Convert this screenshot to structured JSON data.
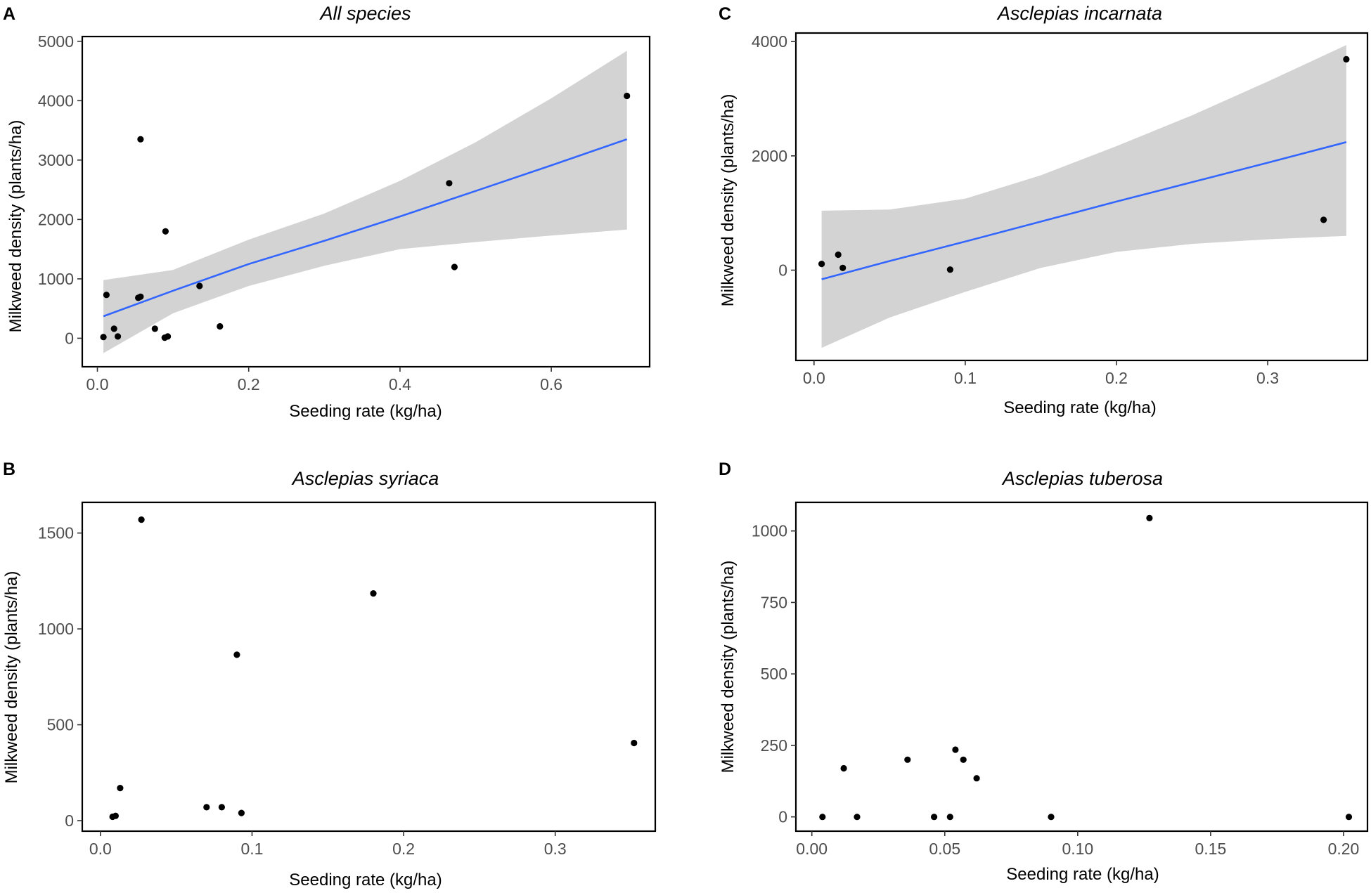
{
  "chart_data": [
    {
      "panel": "A",
      "type": "scatter",
      "title": "All species",
      "xlabel": "Seeding rate (kg/ha)",
      "ylabel": "Milkweed density (plants/ha)",
      "xlim": [
        -0.02,
        0.73
      ],
      "ylim": [
        -480,
        5080
      ],
      "xticks": [
        0.0,
        0.2,
        0.4,
        0.6
      ],
      "xtick_labels": [
        "0.0",
        "0.2",
        "0.4",
        "0.6"
      ],
      "yticks": [
        0,
        1000,
        2000,
        3000,
        4000,
        5000
      ],
      "ytick_labels": [
        "0",
        "1000",
        "2000",
        "3000",
        "4000",
        "5000"
      ],
      "grid": false,
      "points": [
        {
          "x": 0.008,
          "y": 20
        },
        {
          "x": 0.012,
          "y": 730
        },
        {
          "x": 0.022,
          "y": 160
        },
        {
          "x": 0.027,
          "y": 30
        },
        {
          "x": 0.054,
          "y": 680
        },
        {
          "x": 0.057,
          "y": 700
        },
        {
          "x": 0.057,
          "y": 3350
        },
        {
          "x": 0.076,
          "y": 160
        },
        {
          "x": 0.089,
          "y": 10
        },
        {
          "x": 0.09,
          "y": 1800
        },
        {
          "x": 0.093,
          "y": 30
        },
        {
          "x": 0.135,
          "y": 880
        },
        {
          "x": 0.162,
          "y": 200
        },
        {
          "x": 0.465,
          "y": 2610
        },
        {
          "x": 0.472,
          "y": 1200
        },
        {
          "x": 0.7,
          "y": 4080
        }
      ],
      "fit": {
        "color": "#3366ff",
        "band_color": "#d3d3d3",
        "x": [
          0.008,
          0.1,
          0.2,
          0.3,
          0.4,
          0.5,
          0.6,
          0.7
        ],
        "y": [
          370,
          800,
          1250,
          1640,
          2050,
          2480,
          2910,
          3350
        ],
        "lower": [
          -250,
          420,
          880,
          1220,
          1500,
          1620,
          1730,
          1830
        ],
        "upper": [
          980,
          1150,
          1660,
          2100,
          2650,
          3300,
          4040,
          4840
        ]
      }
    },
    {
      "panel": "B",
      "type": "scatter",
      "title": "Asclepias syriaca",
      "xlabel": "Seeding rate (kg/ha)",
      "ylabel": "Milkweed density (plants/ha)",
      "xlim": [
        -0.012,
        0.366
      ],
      "ylim": [
        -55,
        1660
      ],
      "xticks": [
        0.0,
        0.1,
        0.2,
        0.3
      ],
      "xtick_labels": [
        "0.0",
        "0.1",
        "0.2",
        "0.3"
      ],
      "yticks": [
        0,
        500,
        1000,
        1500
      ],
      "ytick_labels": [
        "0",
        "500",
        "1000",
        "1500"
      ],
      "grid": false,
      "points": [
        {
          "x": 0.008,
          "y": 20
        },
        {
          "x": 0.01,
          "y": 25
        },
        {
          "x": 0.013,
          "y": 170
        },
        {
          "x": 0.027,
          "y": 1570
        },
        {
          "x": 0.07,
          "y": 70
        },
        {
          "x": 0.08,
          "y": 70
        },
        {
          "x": 0.09,
          "y": 865
        },
        {
          "x": 0.093,
          "y": 40
        },
        {
          "x": 0.18,
          "y": 1185
        },
        {
          "x": 0.352,
          "y": 405
        }
      ]
    },
    {
      "panel": "C",
      "type": "scatter",
      "title": "Asclepias incarnata",
      "xlabel": "Seeding rate (kg/ha)",
      "ylabel": "Milkweed density (plants/ha)",
      "xlim": [
        -0.012,
        0.366
      ],
      "ylim": [
        -1580,
        4150
      ],
      "xticks": [
        0.0,
        0.1,
        0.2,
        0.3
      ],
      "xtick_labels": [
        "0.0",
        "0.1",
        "0.2",
        "0.3"
      ],
      "yticks": [
        0,
        2000,
        4000
      ],
      "ytick_labels": [
        "0",
        "2000",
        "4000"
      ],
      "grid": false,
      "points": [
        {
          "x": 0.005,
          "y": 110
        },
        {
          "x": 0.016,
          "y": 270
        },
        {
          "x": 0.019,
          "y": 40
        },
        {
          "x": 0.09,
          "y": 10
        },
        {
          "x": 0.337,
          "y": 880
        },
        {
          "x": 0.352,
          "y": 3690
        }
      ],
      "fit": {
        "color": "#3366ff",
        "band_color": "#d3d3d3",
        "x": [
          0.005,
          0.05,
          0.1,
          0.15,
          0.2,
          0.25,
          0.3,
          0.352
        ],
        "y": [
          -160,
          160,
          500,
          850,
          1200,
          1540,
          1880,
          2240
        ],
        "lower": [
          -1360,
          -830,
          -380,
          40,
          320,
          460,
          540,
          600
        ],
        "upper": [
          1040,
          1060,
          1250,
          1660,
          2170,
          2710,
          3300,
          3940
        ]
      }
    },
    {
      "panel": "D",
      "type": "scatter",
      "title": "Asclepias tuberosa",
      "xlabel": "Seeding rate (kg/ha)",
      "ylabel": "Milkweed density (plants/ha)",
      "xlim": [
        -0.006,
        0.209
      ],
      "ylim": [
        -50,
        1100
      ],
      "xticks": [
        0.0,
        0.05,
        0.1,
        0.15,
        0.2
      ],
      "xtick_labels": [
        "0.00",
        "0.05",
        "0.10",
        "0.15",
        "0.20"
      ],
      "yticks": [
        0,
        250,
        500,
        750,
        1000
      ],
      "ytick_labels": [
        "0",
        "250",
        "500",
        "750",
        "1000"
      ],
      "grid": false,
      "points": [
        {
          "x": 0.004,
          "y": 0
        },
        {
          "x": 0.012,
          "y": 170
        },
        {
          "x": 0.017,
          "y": 0
        },
        {
          "x": 0.036,
          "y": 200
        },
        {
          "x": 0.046,
          "y": 0
        },
        {
          "x": 0.052,
          "y": 0
        },
        {
          "x": 0.054,
          "y": 235
        },
        {
          "x": 0.057,
          "y": 200
        },
        {
          "x": 0.062,
          "y": 135
        },
        {
          "x": 0.09,
          "y": 0
        },
        {
          "x": 0.127,
          "y": 1045
        },
        {
          "x": 0.202,
          "y": 0
        }
      ]
    }
  ]
}
